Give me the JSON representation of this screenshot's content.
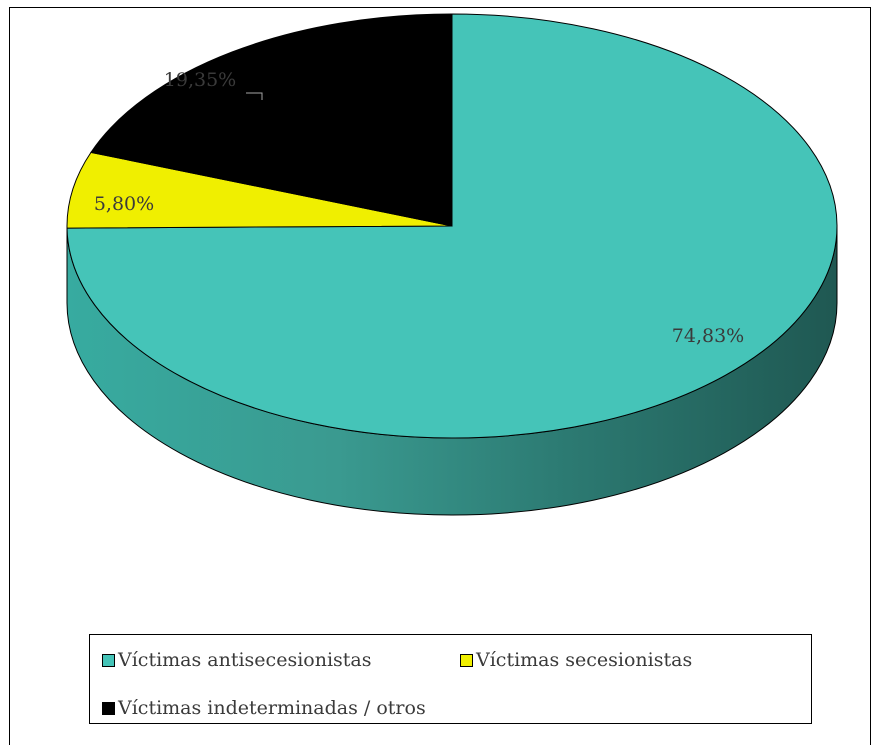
{
  "chart_data": {
    "type": "pie",
    "style": "3d",
    "title": "",
    "slices": [
      {
        "label": "Víctimas antisecesionistas",
        "value": 74.83,
        "display": "74,83%",
        "color": "#45c4b8",
        "side_color": "#2f8f86"
      },
      {
        "label": "Víctimas secesionistas",
        "value": 5.8,
        "display": "5,80%",
        "color": "#f0ef00",
        "side_color": "#b8b800"
      },
      {
        "label": "Víctimas indeterminadas / otros",
        "value": 19.35,
        "display": "19,35%",
        "color": "#000000",
        "side_color": "#000000"
      }
    ],
    "legend_position": "bottom"
  }
}
